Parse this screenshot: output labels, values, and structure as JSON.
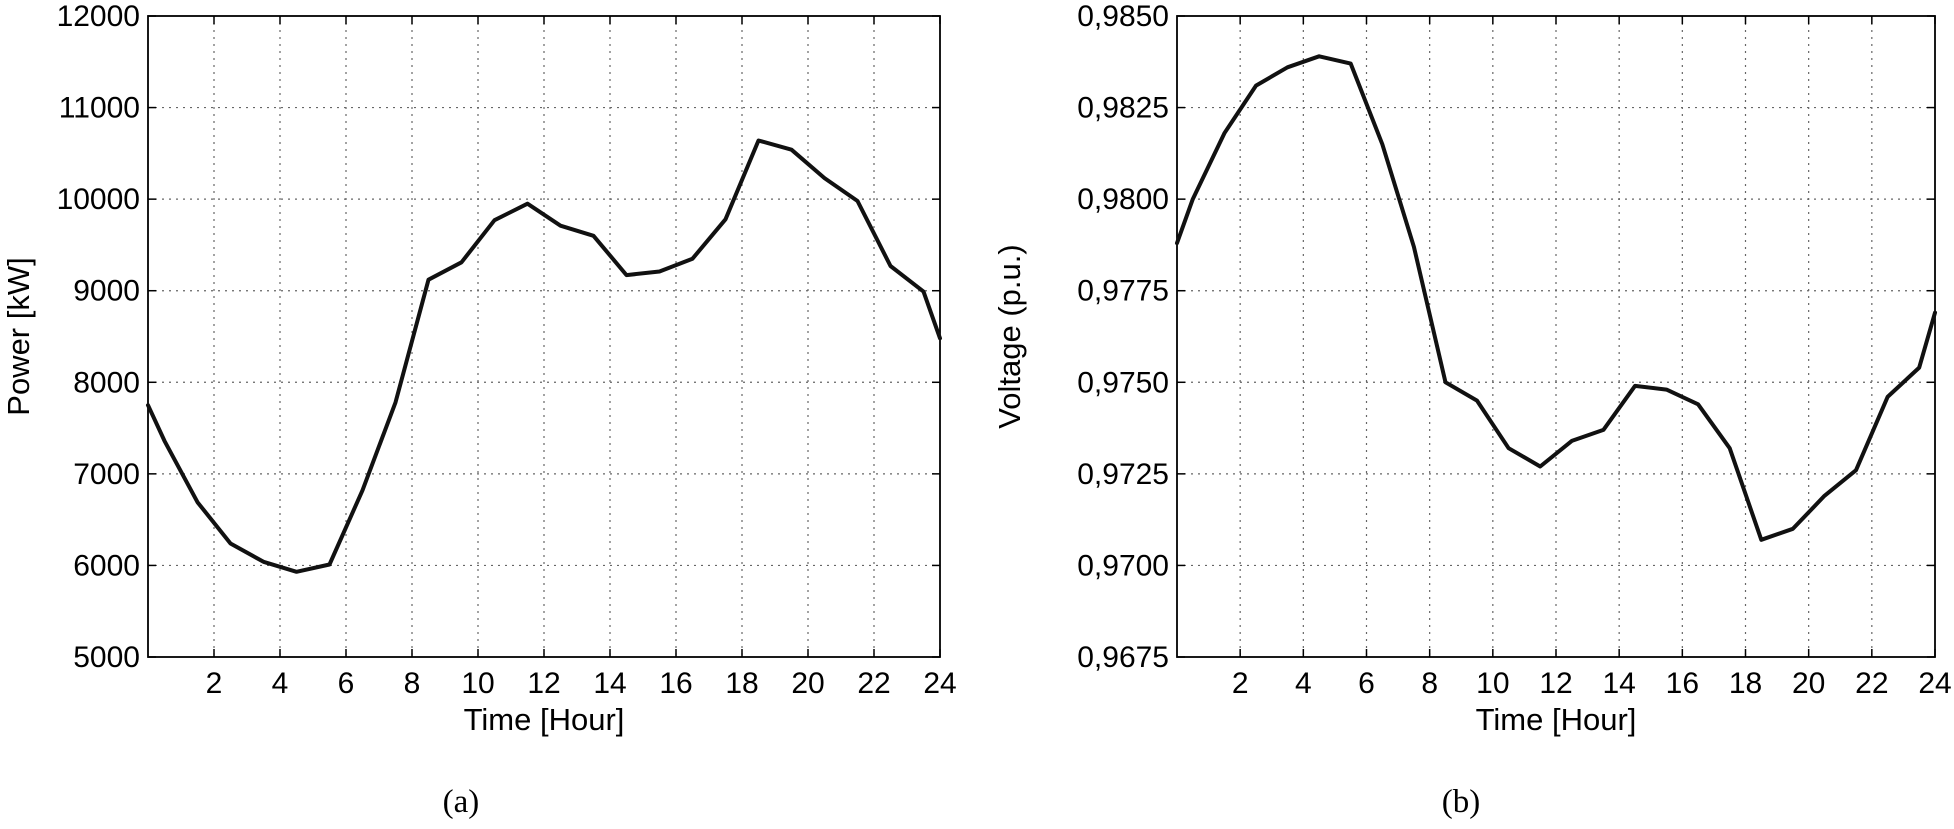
{
  "chart_data": [
    {
      "type": "line",
      "caption": "(a)",
      "xlabel": "Time [Hour]",
      "ylabel": "Power [kW]",
      "xlim": [
        0,
        24
      ],
      "ylim": [
        5000,
        12000
      ],
      "xticks": [
        "2",
        "4",
        "6",
        "8",
        "10",
        "12",
        "14",
        "16",
        "18",
        "20",
        "22",
        "24"
      ],
      "yticks": [
        "5000",
        "6000",
        "7000",
        "8000",
        "9000",
        "10000",
        "11000",
        "12000"
      ],
      "grid": true,
      "line_color": "#111111",
      "x": [
        0,
        0.5,
        1.5,
        2.5,
        3.5,
        4.5,
        5.5,
        6.5,
        7.5,
        8.5,
        9.5,
        10.5,
        11.5,
        12.5,
        13.5,
        14.5,
        15.5,
        16.5,
        17.5,
        18.5,
        19.5,
        20.5,
        21.5,
        22.5,
        23.5,
        24
      ],
      "y": [
        7750,
        7360,
        6690,
        6240,
        6040,
        5930,
        6010,
        6820,
        7780,
        9120,
        9310,
        9770,
        9950,
        9710,
        9600,
        9170,
        9210,
        9350,
        9780,
        10640,
        10540,
        10230,
        9980,
        9270,
        8990,
        8480
      ]
    },
    {
      "type": "line",
      "caption": "(b)",
      "xlabel": "Time [Hour]",
      "ylabel": "Voltage (p.u.)",
      "xlim": [
        0,
        24
      ],
      "ylim": [
        0.9675,
        0.985
      ],
      "xticks": [
        "2",
        "4",
        "6",
        "8",
        "10",
        "12",
        "14",
        "16",
        "18",
        "20",
        "22",
        "24"
      ],
      "yticks": [
        "0,9675",
        "0,9700",
        "0,9725",
        "0,9750",
        "0,9775",
        "0,9800",
        "0,9825",
        "0,9850"
      ],
      "grid": true,
      "line_color": "#111111",
      "x": [
        0,
        0.5,
        1.5,
        2.5,
        3.5,
        4.5,
        5.5,
        6.5,
        7.5,
        8.5,
        9.5,
        10.5,
        11.5,
        12.5,
        13.5,
        14.5,
        15.5,
        16.5,
        17.5,
        18.5,
        19.5,
        20.5,
        21.5,
        22.5,
        23.5,
        24
      ],
      "y": [
        0.9788,
        0.98,
        0.9818,
        0.9831,
        0.9836,
        0.9839,
        0.9837,
        0.9815,
        0.9787,
        0.975,
        0.9745,
        0.9732,
        0.9727,
        0.9734,
        0.9737,
        0.9749,
        0.9748,
        0.9744,
        0.9732,
        0.9707,
        0.971,
        0.9719,
        0.9726,
        0.9746,
        0.9754,
        0.9769
      ]
    }
  ]
}
